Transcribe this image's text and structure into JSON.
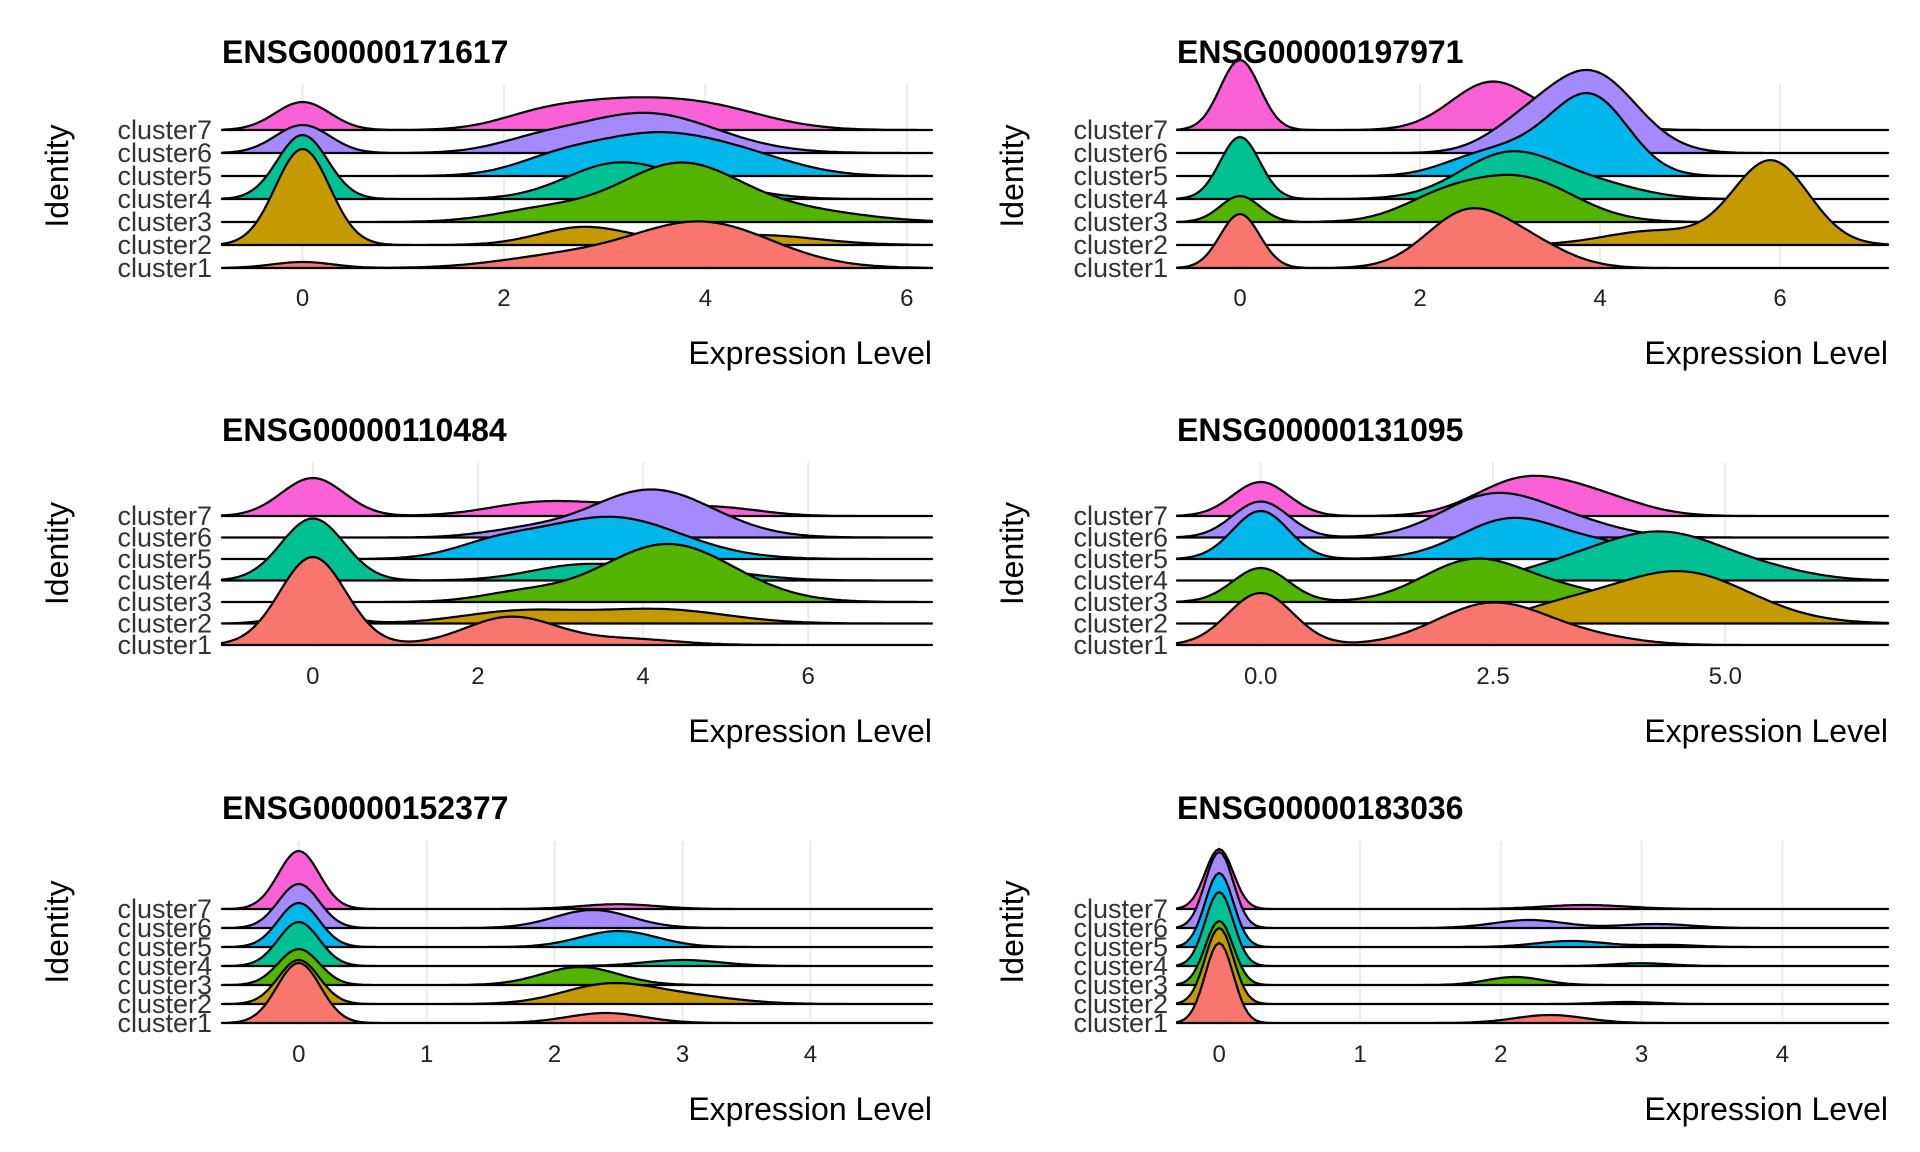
{
  "colors": {
    "cluster1": "#F8766D",
    "cluster2": "#C49A00",
    "cluster3": "#53B400",
    "cluster4": "#00C094",
    "cluster5": "#00B6EB",
    "cluster6": "#A58AFF",
    "cluster7": "#FB61D7"
  },
  "chart_data": [
    {
      "type": "ridgeline",
      "title": "ENSG00000171617",
      "xlabel": "Expression Level",
      "ylabel": "Identity",
      "xlim": [
        -0.8,
        6.25
      ],
      "xticks": [
        0,
        2,
        4,
        6
      ],
      "grid": true,
      "categories": [
        "cluster1",
        "cluster2",
        "cluster3",
        "cluster4",
        "cluster5",
        "cluster6",
        "cluster7"
      ],
      "series": [
        {
          "name": "cluster1",
          "density": [
            [
              0,
              0.15,
              0.3
            ],
            [
              2.5,
              0.25,
              0.6
            ],
            [
              3.95,
              1.15,
              0.7
            ]
          ]
        },
        {
          "name": "cluster2",
          "density": [
            [
              0,
              2.4,
              0.27
            ],
            [
              2.8,
              0.45,
              0.45
            ],
            [
              4.5,
              0.25,
              0.6
            ]
          ]
        },
        {
          "name": "cluster3",
          "density": [
            [
              3.75,
              1.45,
              0.6
            ],
            [
              2.4,
              0.3,
              0.5
            ],
            [
              5,
              0.25,
              0.6
            ]
          ]
        },
        {
          "name": "cluster4",
          "density": [
            [
              0,
              1.6,
              0.25
            ],
            [
              3.1,
              0.85,
              0.5
            ],
            [
              4,
              0.3,
              0.5
            ]
          ]
        },
        {
          "name": "cluster5",
          "density": [
            [
              3.5,
              1.05,
              0.7
            ],
            [
              2.5,
              0.25,
              0.4
            ],
            [
              4.5,
              0.25,
              0.5
            ]
          ]
        },
        {
          "name": "cluster6",
          "density": [
            [
              0,
              0.7,
              0.27
            ],
            [
              3.4,
              1.0,
              0.7
            ],
            [
              2.3,
              0.2,
              0.4
            ]
          ]
        },
        {
          "name": "cluster7",
          "density": [
            [
              0,
              0.7,
              0.27
            ],
            [
              3,
              0.6,
              0.6
            ],
            [
              4,
              0.55,
              0.6
            ],
            [
              2.3,
              0.2,
              0.4
            ]
          ]
        }
      ]
    },
    {
      "type": "ridgeline",
      "title": "ENSG00000197971",
      "xlabel": "Expression Level",
      "ylabel": "Identity",
      "xlim": [
        -0.7,
        7.2
      ],
      "xticks": [
        0,
        2,
        4,
        6
      ],
      "grid": true,
      "categories": [
        "cluster1",
        "cluster2",
        "cluster3",
        "cluster4",
        "cluster5",
        "cluster6",
        "cluster7"
      ],
      "series": [
        {
          "name": "cluster1",
          "density": [
            [
              0,
              1.35,
              0.22
            ],
            [
              2.5,
              1.3,
              0.45
            ],
            [
              3.2,
              0.55,
              0.45
            ]
          ]
        },
        {
          "name": "cluster2",
          "density": [
            [
              5.9,
              2.1,
              0.42
            ],
            [
              4.6,
              0.35,
              0.55
            ]
          ]
        },
        {
          "name": "cluster3",
          "density": [
            [
              0,
              0.65,
              0.22
            ],
            [
              3.1,
              1.1,
              0.6
            ],
            [
              2.2,
              0.45,
              0.45
            ]
          ]
        },
        {
          "name": "cluster4",
          "density": [
            [
              0,
              1.55,
              0.22
            ],
            [
              3,
              1.15,
              0.55
            ],
            [
              4,
              0.3,
              0.5
            ]
          ]
        },
        {
          "name": "cluster5",
          "density": [
            [
              3.9,
              1.95,
              0.42
            ],
            [
              2.6,
              0.4,
              0.4
            ],
            [
              3.2,
              0.5,
              0.4
            ]
          ]
        },
        {
          "name": "cluster6",
          "density": [
            [
              3.9,
              2.0,
              0.5
            ],
            [
              3.1,
              0.5,
              0.4
            ]
          ]
        },
        {
          "name": "cluster7",
          "density": [
            [
              0,
              1.75,
              0.22
            ],
            [
              2.8,
              1.2,
              0.45
            ],
            [
              3.8,
              0.25,
              0.4
            ]
          ]
        }
      ]
    },
    {
      "type": "ridgeline",
      "title": "ENSG00000110484",
      "xlabel": "Expression Level",
      "ylabel": "Identity",
      "xlim": [
        -1.1,
        7.5
      ],
      "xticks": [
        0,
        2,
        4,
        6
      ],
      "grid": true,
      "categories": [
        "cluster1",
        "cluster2",
        "cluster3",
        "cluster4",
        "cluster5",
        "cluster6",
        "cluster7"
      ],
      "series": [
        {
          "name": "cluster1",
          "density": [
            [
              0,
              2.2,
              0.4
            ],
            [
              2.4,
              0.7,
              0.55
            ],
            [
              3.8,
              0.15,
              0.6
            ]
          ]
        },
        {
          "name": "cluster2",
          "density": [
            [
              0,
              0.35,
              0.35
            ],
            [
              2.5,
              0.3,
              0.7
            ],
            [
              4.2,
              0.35,
              0.8
            ]
          ]
        },
        {
          "name": "cluster3",
          "density": [
            [
              4.3,
              1.45,
              0.8
            ],
            [
              2.5,
              0.2,
              0.5
            ]
          ]
        },
        {
          "name": "cluster4",
          "density": [
            [
              0,
              1.55,
              0.38
            ],
            [
              3.2,
              0.35,
              0.6
            ],
            [
              4.5,
              0.3,
              0.7
            ]
          ]
        },
        {
          "name": "cluster5",
          "density": [
            [
              3.6,
              1.05,
              0.85
            ],
            [
              2.2,
              0.3,
              0.5
            ]
          ]
        },
        {
          "name": "cluster6",
          "density": [
            [
              4.1,
              1.2,
              0.75
            ],
            [
              2.5,
              0.15,
              0.5
            ]
          ]
        },
        {
          "name": "cluster7",
          "density": [
            [
              0,
              0.95,
              0.38
            ],
            [
              2.7,
              0.3,
              0.6
            ],
            [
              3.9,
              0.25,
              0.7
            ],
            [
              5,
              0.15,
              0.5
            ]
          ]
        }
      ]
    },
    {
      "type": "ridgeline",
      "title": "ENSG00000131095",
      "xlabel": "Expression Level",
      "ylabel": "Identity",
      "xlim": [
        -0.9,
        6.75
      ],
      "xticks": [
        0.0,
        2.5,
        5.0
      ],
      "grid": true,
      "categories": [
        "cluster1",
        "cluster2",
        "cluster3",
        "cluster4",
        "cluster5",
        "cluster6",
        "cluster7"
      ],
      "series": [
        {
          "name": "cluster1",
          "density": [
            [
              0,
              1.3,
              0.35
            ],
            [
              2.5,
              1.05,
              0.6
            ],
            [
              3.6,
              0.15,
              0.5
            ]
          ]
        },
        {
          "name": "cluster2",
          "density": [
            [
              4.5,
              1.3,
              0.75
            ],
            [
              3.2,
              0.3,
              0.5
            ]
          ]
        },
        {
          "name": "cluster3",
          "density": [
            [
              0,
              0.85,
              0.3
            ],
            [
              2.3,
              1.05,
              0.55
            ],
            [
              3.3,
              0.25,
              0.5
            ]
          ]
        },
        {
          "name": "cluster4",
          "density": [
            [
              4.3,
              1.2,
              0.7
            ],
            [
              3.2,
              0.2,
              0.5
            ],
            [
              5.5,
              0.15,
              0.5
            ]
          ]
        },
        {
          "name": "cluster5",
          "density": [
            [
              0,
              1.2,
              0.3
            ],
            [
              2.7,
              1.0,
              0.55
            ],
            [
              3.8,
              0.3,
              0.5
            ]
          ]
        },
        {
          "name": "cluster6",
          "density": [
            [
              0,
              0.9,
              0.3
            ],
            [
              2.5,
              1.05,
              0.55
            ],
            [
              3.4,
              0.3,
              0.5
            ]
          ]
        },
        {
          "name": "cluster7",
          "density": [
            [
              0,
              0.85,
              0.3
            ],
            [
              2.8,
              0.85,
              0.5
            ],
            [
              3.6,
              0.45,
              0.5
            ]
          ]
        }
      ]
    },
    {
      "type": "ridgeline",
      "title": "ENSG00000152377",
      "xlabel": "Expression Level",
      "ylabel": "Identity",
      "xlim": [
        -0.6,
        4.95
      ],
      "xticks": [
        0,
        1,
        2,
        3,
        4
      ],
      "grid": true,
      "categories": [
        "cluster1",
        "cluster2",
        "cluster3",
        "cluster4",
        "cluster5",
        "cluster6",
        "cluster7"
      ],
      "series": [
        {
          "name": "cluster1",
          "density": [
            [
              0,
              1.5,
              0.17
            ],
            [
              2.4,
              0.25,
              0.3
            ]
          ]
        },
        {
          "name": "cluster2",
          "density": [
            [
              0,
              1.1,
              0.16
            ],
            [
              2.4,
              0.45,
              0.35
            ],
            [
              3,
              0.2,
              0.4
            ]
          ]
        },
        {
          "name": "cluster3",
          "density": [
            [
              0,
              0.9,
              0.16
            ],
            [
              2.2,
              0.45,
              0.3
            ]
          ]
        },
        {
          "name": "cluster4",
          "density": [
            [
              0,
              1.1,
              0.16
            ],
            [
              3,
              0.15,
              0.3
            ]
          ]
        },
        {
          "name": "cluster5",
          "density": [
            [
              0,
              1.1,
              0.16
            ],
            [
              2.5,
              0.4,
              0.3
            ]
          ]
        },
        {
          "name": "cluster6",
          "density": [
            [
              0,
              1.1,
              0.16
            ],
            [
              2.3,
              0.45,
              0.3
            ]
          ]
        },
        {
          "name": "cluster7",
          "density": [
            [
              0,
              1.45,
              0.16
            ],
            [
              2.5,
              0.12,
              0.3
            ]
          ]
        }
      ]
    },
    {
      "type": "ridgeline",
      "title": "ENSG00000183036",
      "xlabel": "Expression Level",
      "ylabel": "Identity",
      "xlim": [
        -0.3,
        4.75
      ],
      "xticks": [
        0,
        1,
        2,
        3,
        4
      ],
      "grid": true,
      "categories": [
        "cluster1",
        "cluster2",
        "cluster3",
        "cluster4",
        "cluster5",
        "cluster6",
        "cluster7"
      ],
      "series": [
        {
          "name": "cluster1",
          "density": [
            [
              0,
              2.0,
              0.1
            ],
            [
              2.35,
              0.2,
              0.25
            ]
          ]
        },
        {
          "name": "cluster2",
          "density": [
            [
              0,
              1.9,
              0.1
            ],
            [
              2.9,
              0.05,
              0.2
            ]
          ]
        },
        {
          "name": "cluster3",
          "density": [
            [
              0,
              1.6,
              0.1
            ],
            [
              2.1,
              0.2,
              0.2
            ]
          ]
        },
        {
          "name": "cluster4",
          "density": [
            [
              0,
              1.85,
              0.1
            ],
            [
              3,
              0.07,
              0.2
            ]
          ]
        },
        {
          "name": "cluster5",
          "density": [
            [
              0,
              1.85,
              0.1
            ],
            [
              2.5,
              0.15,
              0.25
            ],
            [
              3.2,
              0.05,
              0.2
            ]
          ]
        },
        {
          "name": "cluster6",
          "density": [
            [
              0,
              1.9,
              0.1
            ],
            [
              2.2,
              0.2,
              0.25
            ],
            [
              3.1,
              0.1,
              0.25
            ]
          ]
        },
        {
          "name": "cluster7",
          "density": [
            [
              0,
              1.5,
              0.1
            ],
            [
              2.6,
              0.1,
              0.3
            ]
          ]
        }
      ]
    }
  ]
}
